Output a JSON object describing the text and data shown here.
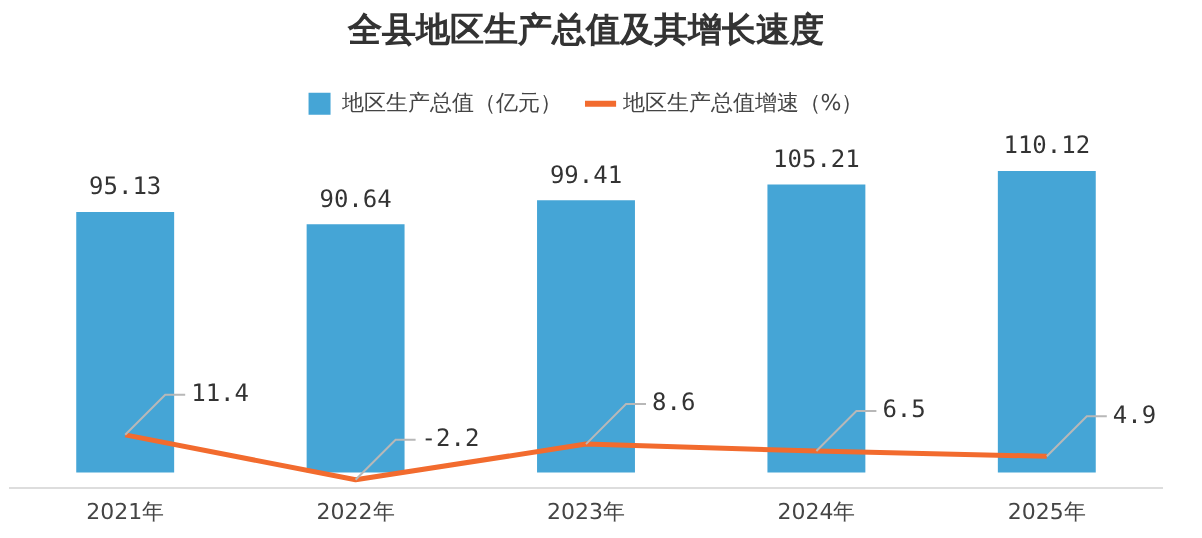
{
  "chart_data": {
    "type": "bar",
    "title": "全县地区生产总值及其增长速度",
    "categories": [
      "2021年",
      "2022年",
      "2023年",
      "2024年",
      "2025年"
    ],
    "series": [
      {
        "name": "地区生产总值（亿元）",
        "type": "bar",
        "color": "#45a5d6",
        "values": [
          95.13,
          90.64,
          99.41,
          105.21,
          110.12
        ]
      },
      {
        "name": "地区生产总值增速（%）",
        "type": "line",
        "axis": "y2",
        "color": "#f26b2e",
        "values": [
          11.4,
          -2.2,
          8.6,
          6.5,
          4.9
        ]
      }
    ],
    "data_labels": true,
    "legend": "top",
    "marker": "none",
    "line_style": "solid",
    "grid": false
  }
}
